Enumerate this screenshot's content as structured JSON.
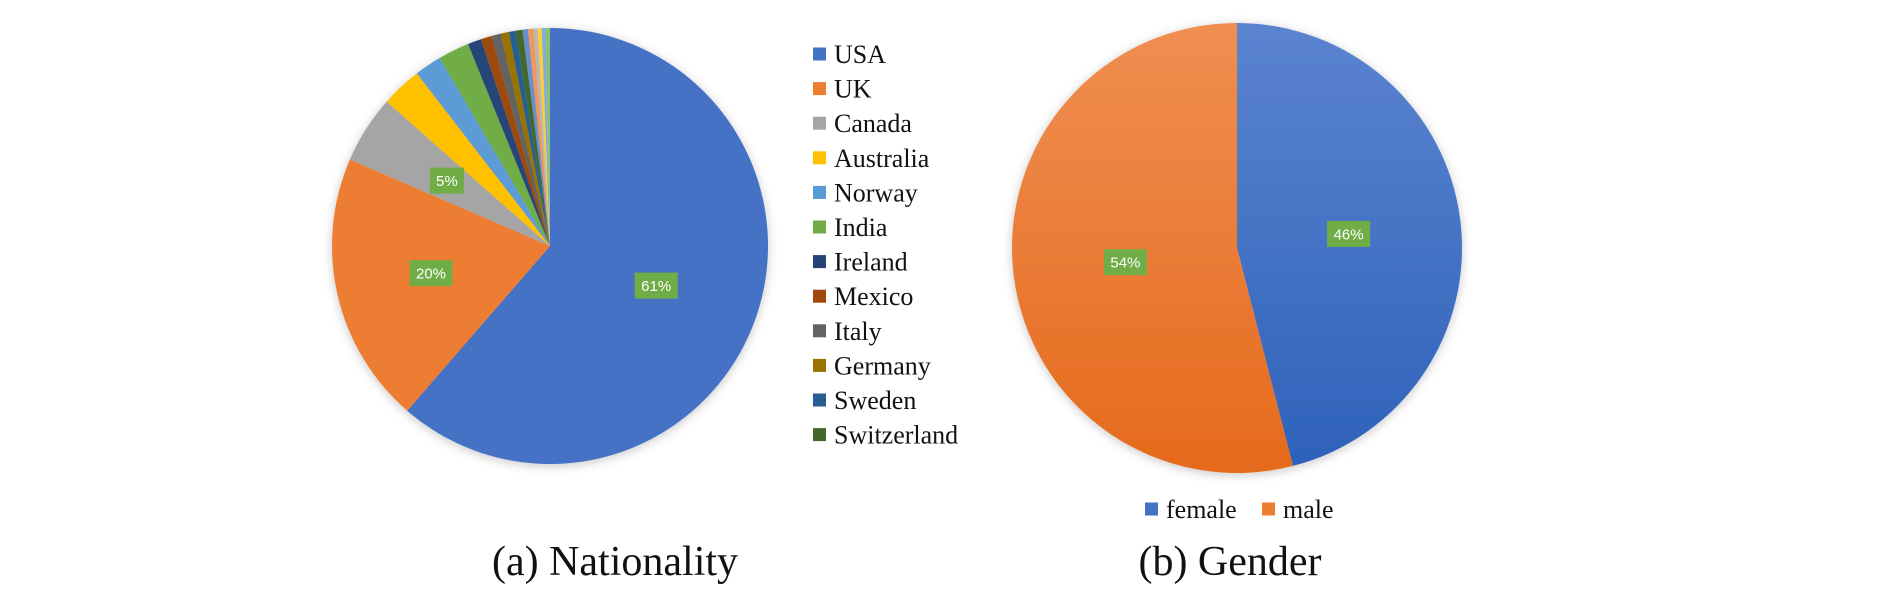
{
  "chart_data": [
    {
      "type": "pie",
      "caption": "(a) Nationality",
      "slices": [
        {
          "label": "USA",
          "value": 61,
          "color": "#4472C4",
          "data_label": "61%"
        },
        {
          "label": "UK",
          "value": 20,
          "color": "#ED7D31",
          "data_label": "20%"
        },
        {
          "label": "Canada",
          "value": 5,
          "color": "#A5A5A5",
          "data_label": "5%"
        },
        {
          "label": "Australia",
          "value": 3,
          "color": "#FFC000"
        },
        {
          "label": "Norway",
          "value": 2,
          "color": "#5B9BD5"
        },
        {
          "label": "India",
          "value": 2.3,
          "color": "#70AD47"
        },
        {
          "label": "Ireland",
          "value": 1,
          "color": "#264478"
        },
        {
          "label": "Mexico",
          "value": 0.8,
          "color": "#9E480E"
        },
        {
          "label": "Italy",
          "value": 0.7,
          "color": "#636363"
        },
        {
          "label": "Germany",
          "value": 0.6,
          "color": "#997300"
        },
        {
          "label": "Sweden",
          "value": 0.5,
          "color": "#255E91"
        },
        {
          "label": "Switzerland",
          "value": 0.5,
          "color": "#43682B"
        },
        {
          "value": 0.4,
          "color": "#698ED0"
        },
        {
          "value": 0.4,
          "color": "#F1975A"
        },
        {
          "value": 0.3,
          "color": "#B7B7B7"
        },
        {
          "value": 0.3,
          "color": "#FFCD33"
        },
        {
          "value": 0.3,
          "color": "#7CAFDD"
        },
        {
          "value": 0.3,
          "color": "#8CC168"
        }
      ],
      "legend_position": "right",
      "label_box_color": "#70AD47"
    },
    {
      "type": "pie",
      "caption": "(b) Gender",
      "slices": [
        {
          "label": "female",
          "value": 46,
          "color": "#4472C4",
          "data_label": "46%"
        },
        {
          "label": "male",
          "value": 54,
          "color": "#ED7D31",
          "data_label": "54%"
        }
      ],
      "legend_position": "bottom",
      "label_box_color": "#70AD47"
    }
  ]
}
